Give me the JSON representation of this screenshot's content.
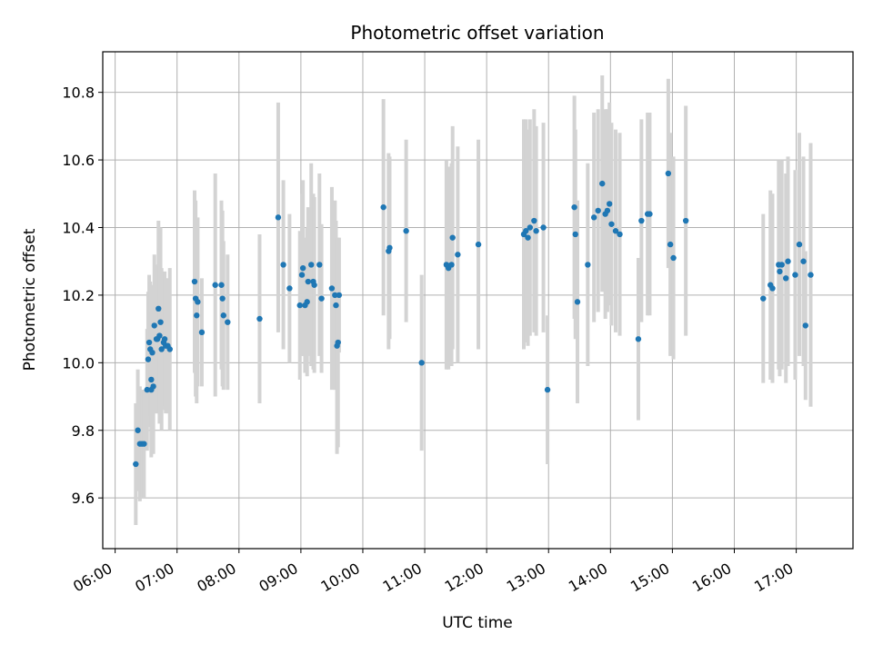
{
  "chart_data": {
    "type": "scatter",
    "title": "Photometric offset variation",
    "xlabel": "UTC time",
    "ylabel": "Photometric offset",
    "x_unit": "hours UTC",
    "xlim": [
      "05:48",
      "17:55"
    ],
    "ylim": [
      9.45,
      10.92
    ],
    "x_ticks": [
      {
        "value": 6,
        "label": "06:00"
      },
      {
        "value": 7,
        "label": "07:00"
      },
      {
        "value": 8,
        "label": "08:00"
      },
      {
        "value": 9,
        "label": "09:00"
      },
      {
        "value": 10,
        "label": "10:00"
      },
      {
        "value": 11,
        "label": "11:00"
      },
      {
        "value": 12,
        "label": "12:00"
      },
      {
        "value": 13,
        "label": "13:00"
      },
      {
        "value": 14,
        "label": "14:00"
      },
      {
        "value": 15,
        "label": "15:00"
      },
      {
        "value": 16,
        "label": "16:00"
      },
      {
        "value": 17,
        "label": "17:00"
      }
    ],
    "y_ticks": [
      {
        "value": 9.6,
        "label": "9.6"
      },
      {
        "value": 9.8,
        "label": "9.8"
      },
      {
        "value": 10.0,
        "label": "10.0"
      },
      {
        "value": 10.2,
        "label": "10.2"
      },
      {
        "value": 10.4,
        "label": "10.4"
      },
      {
        "value": 10.6,
        "label": "10.6"
      },
      {
        "value": 10.8,
        "label": "10.8"
      }
    ],
    "grid": true,
    "colors": {
      "point": "#1f77b4",
      "errorbar": "#d3d3d3",
      "grid": "#b0b0b0"
    },
    "points": [
      {
        "x": "06:20",
        "y": 9.7,
        "err": 0.18
      },
      {
        "x": "06:22",
        "y": 9.8,
        "err": 0.18
      },
      {
        "x": "06:24",
        "y": 9.76,
        "err": 0.17
      },
      {
        "x": "06:26",
        "y": 9.76,
        "err": 0.16
      },
      {
        "x": "06:28",
        "y": 9.76,
        "err": 0.16
      },
      {
        "x": "06:31",
        "y": 9.92,
        "err": 0.18
      },
      {
        "x": "06:32",
        "y": 10.01,
        "err": 0.2
      },
      {
        "x": "06:33",
        "y": 10.06,
        "err": 0.2
      },
      {
        "x": "06:34",
        "y": 10.04,
        "err": 0.2
      },
      {
        "x": "06:35",
        "y": 9.92,
        "err": 0.2
      },
      {
        "x": "06:35",
        "y": 9.95,
        "err": 0.2
      },
      {
        "x": "06:36",
        "y": 10.03,
        "err": 0.2
      },
      {
        "x": "06:37",
        "y": 9.93,
        "err": 0.2
      },
      {
        "x": "06:38",
        "y": 10.11,
        "err": 0.21
      },
      {
        "x": "06:40",
        "y": 10.07,
        "err": 0.22
      },
      {
        "x": "06:41",
        "y": 10.07,
        "err": 0.22
      },
      {
        "x": "06:42",
        "y": 10.16,
        "err": 0.26
      },
      {
        "x": "06:43",
        "y": 10.08,
        "err": 0.26
      },
      {
        "x": "06:44",
        "y": 10.12,
        "err": 0.28
      },
      {
        "x": "06:45",
        "y": 10.04,
        "err": 0.24
      },
      {
        "x": "06:47",
        "y": 10.06,
        "err": 0.2
      },
      {
        "x": "06:48",
        "y": 10.07,
        "err": 0.2
      },
      {
        "x": "06:49",
        "y": 10.05,
        "err": 0.2
      },
      {
        "x": "06:51",
        "y": 10.05,
        "err": 0.2
      },
      {
        "x": "06:53",
        "y": 10.04,
        "err": 0.24
      },
      {
        "x": "07:17",
        "y": 10.24,
        "err": 0.27
      },
      {
        "x": "07:18",
        "y": 10.19,
        "err": 0.29
      },
      {
        "x": "07:19",
        "y": 10.14,
        "err": 0.26
      },
      {
        "x": "07:20",
        "y": 10.18,
        "err": 0.25
      },
      {
        "x": "07:24",
        "y": 10.09,
        "err": 0.16
      },
      {
        "x": "07:37",
        "y": 10.23,
        "err": 0.33
      },
      {
        "x": "07:43",
        "y": 10.23,
        "err": 0.25
      },
      {
        "x": "07:44",
        "y": 10.19,
        "err": 0.26
      },
      {
        "x": "07:45",
        "y": 10.14,
        "err": 0.22
      },
      {
        "x": "07:49",
        "y": 10.12,
        "err": 0.2
      },
      {
        "x": "08:20",
        "y": 10.13,
        "err": 0.25
      },
      {
        "x": "08:38",
        "y": 10.43,
        "err": 0.34
      },
      {
        "x": "08:43",
        "y": 10.29,
        "err": 0.25
      },
      {
        "x": "08:49",
        "y": 10.22,
        "err": 0.22
      },
      {
        "x": "08:59",
        "y": 10.17,
        "err": 0.22
      },
      {
        "x": "09:01",
        "y": 10.26,
        "err": 0.24
      },
      {
        "x": "09:02",
        "y": 10.28,
        "err": 0.26
      },
      {
        "x": "09:04",
        "y": 10.17,
        "err": 0.2
      },
      {
        "x": "09:06",
        "y": 10.18,
        "err": 0.22
      },
      {
        "x": "09:07",
        "y": 10.24,
        "err": 0.22
      },
      {
        "x": "09:10",
        "y": 10.29,
        "err": 0.3
      },
      {
        "x": "09:12",
        "y": 10.24,
        "err": 0.26
      },
      {
        "x": "09:13",
        "y": 10.23,
        "err": 0.26
      },
      {
        "x": "09:18",
        "y": 10.29,
        "err": 0.27
      },
      {
        "x": "09:20",
        "y": 10.19,
        "err": 0.22
      },
      {
        "x": "09:30",
        "y": 10.22,
        "err": 0.3
      },
      {
        "x": "09:33",
        "y": 10.2,
        "err": 0.28
      },
      {
        "x": "09:34",
        "y": 10.17,
        "err": 0.25
      },
      {
        "x": "09:35",
        "y": 10.05,
        "err": 0.32
      },
      {
        "x": "09:36",
        "y": 10.06,
        "err": 0.31
      },
      {
        "x": "09:37",
        "y": 10.2,
        "err": 0.17
      },
      {
        "x": "10:20",
        "y": 10.46,
        "err": 0.32
      },
      {
        "x": "10:25",
        "y": 10.33,
        "err": 0.29
      },
      {
        "x": "10:26",
        "y": 10.34,
        "err": 0.27
      },
      {
        "x": "10:42",
        "y": 10.39,
        "err": 0.27
      },
      {
        "x": "10:57",
        "y": 10.0,
        "err": 0.26
      },
      {
        "x": "11:21",
        "y": 10.29,
        "err": 0.31
      },
      {
        "x": "11:23",
        "y": 10.28,
        "err": 0.3
      },
      {
        "x": "11:26",
        "y": 10.29,
        "err": 0.3
      },
      {
        "x": "11:27",
        "y": 10.37,
        "err": 0.33
      },
      {
        "x": "11:32",
        "y": 10.32,
        "err": 0.32
      },
      {
        "x": "11:52",
        "y": 10.35,
        "err": 0.31
      },
      {
        "x": "12:36",
        "y": 10.38,
        "err": 0.34
      },
      {
        "x": "12:38",
        "y": 10.39,
        "err": 0.33
      },
      {
        "x": "12:40",
        "y": 10.37,
        "err": 0.32
      },
      {
        "x": "12:42",
        "y": 10.4,
        "err": 0.32
      },
      {
        "x": "12:46",
        "y": 10.42,
        "err": 0.33
      },
      {
        "x": "12:48",
        "y": 10.39,
        "err": 0.31
      },
      {
        "x": "12:55",
        "y": 10.4,
        "err": 0.31
      },
      {
        "x": "12:59",
        "y": 9.92,
        "err": 0.22
      },
      {
        "x": "13:25",
        "y": 10.46,
        "err": 0.33
      },
      {
        "x": "13:26",
        "y": 10.38,
        "err": 0.31
      },
      {
        "x": "13:28",
        "y": 10.18,
        "err": 0.3
      },
      {
        "x": "13:38",
        "y": 10.29,
        "err": 0.3
      },
      {
        "x": "13:44",
        "y": 10.43,
        "err": 0.31
      },
      {
        "x": "13:48",
        "y": 10.45,
        "err": 0.3
      },
      {
        "x": "13:52",
        "y": 10.53,
        "err": 0.32
      },
      {
        "x": "13:55",
        "y": 10.44,
        "err": 0.31
      },
      {
        "x": "13:57",
        "y": 10.45,
        "err": 0.3
      },
      {
        "x": "13:59",
        "y": 10.47,
        "err": 0.3
      },
      {
        "x": "14:01",
        "y": 10.41,
        "err": 0.3
      },
      {
        "x": "14:05",
        "y": 10.39,
        "err": 0.3
      },
      {
        "x": "14:09",
        "y": 10.38,
        "err": 0.3
      },
      {
        "x": "14:27",
        "y": 10.07,
        "err": 0.24
      },
      {
        "x": "14:30",
        "y": 10.42,
        "err": 0.3
      },
      {
        "x": "14:36",
        "y": 10.44,
        "err": 0.3
      },
      {
        "x": "14:38",
        "y": 10.44,
        "err": 0.3
      },
      {
        "x": "14:56",
        "y": 10.56,
        "err": 0.28
      },
      {
        "x": "14:58",
        "y": 10.35,
        "err": 0.33
      },
      {
        "x": "15:01",
        "y": 10.31,
        "err": 0.3
      },
      {
        "x": "15:13",
        "y": 10.42,
        "err": 0.34
      },
      {
        "x": "16:28",
        "y": 10.19,
        "err": 0.25
      },
      {
        "x": "16:35",
        "y": 10.23,
        "err": 0.28
      },
      {
        "x": "16:37",
        "y": 10.22,
        "err": 0.28
      },
      {
        "x": "16:43",
        "y": 10.29,
        "err": 0.31
      },
      {
        "x": "16:44",
        "y": 10.27,
        "err": 0.31
      },
      {
        "x": "16:46",
        "y": 10.29,
        "err": 0.31
      },
      {
        "x": "16:50",
        "y": 10.25,
        "err": 0.31
      },
      {
        "x": "16:52",
        "y": 10.3,
        "err": 0.31
      },
      {
        "x": "16:59",
        "y": 10.26,
        "err": 0.31
      },
      {
        "x": "17:03",
        "y": 10.35,
        "err": 0.33
      },
      {
        "x": "17:07",
        "y": 10.3,
        "err": 0.31
      },
      {
        "x": "17:09",
        "y": 10.11,
        "err": 0.22
      },
      {
        "x": "17:14",
        "y": 10.26,
        "err": 0.39
      }
    ]
  }
}
